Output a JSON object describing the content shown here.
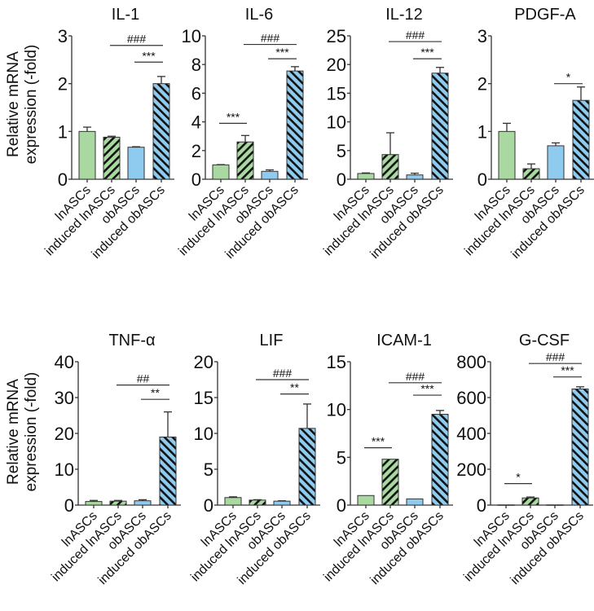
{
  "chart_data": {
    "type": "bar",
    "ylabel": [
      "Relative mRNA",
      "expression (-fold)"
    ],
    "categories": [
      "lnASCs",
      "induced lnASCs",
      "obASCs",
      "induced obASCs"
    ],
    "colors": {
      "lnASCs": "#a9d9a1",
      "obASCs": "#8ecbee",
      "hatch": "#111111"
    },
    "panels": [
      {
        "title": "IL-1",
        "ylim": [
          0,
          3
        ],
        "ticks": [
          "0",
          "1",
          "2",
          "3"
        ],
        "tick_values": [
          0,
          1,
          2,
          3
        ],
        "values": [
          1.0,
          0.88,
          0.67,
          2.0
        ],
        "errors": [
          0.09,
          0.02,
          0.01,
          0.15
        ],
        "annotations": [
          {
            "from": 1,
            "to": 3,
            "y": 2.8,
            "label": "###"
          },
          {
            "from": 2,
            "to": 3,
            "y": 2.45,
            "label": "***"
          }
        ]
      },
      {
        "title": "IL-6",
        "ylim": [
          0,
          10
        ],
        "ticks": [
          "0",
          "2",
          "4",
          "6",
          "8",
          "10"
        ],
        "tick_values": [
          0,
          2,
          4,
          6,
          8,
          10
        ],
        "values": [
          1.0,
          2.6,
          0.55,
          7.55
        ],
        "errors": [
          0.02,
          0.45,
          0.1,
          0.3
        ],
        "annotations": [
          {
            "from": 0,
            "to": 1,
            "y": 3.9,
            "label": "***"
          },
          {
            "from": 1,
            "to": 3,
            "y": 9.4,
            "label": "###"
          },
          {
            "from": 2,
            "to": 3,
            "y": 8.4,
            "label": "***"
          }
        ]
      },
      {
        "title": "IL-12",
        "ylim": [
          0,
          25
        ],
        "ticks": [
          "0",
          "5",
          "10",
          "15",
          "20",
          "25"
        ],
        "tick_values": [
          0,
          5,
          10,
          15,
          20,
          25
        ],
        "values": [
          1.0,
          4.3,
          0.75,
          18.5
        ],
        "errors": [
          0.1,
          3.8,
          0.3,
          1.0
        ],
        "annotations": [
          {
            "from": 1,
            "to": 3,
            "y": 24,
            "label": "###"
          },
          {
            "from": 2,
            "to": 3,
            "y": 21,
            "label": "***"
          }
        ]
      },
      {
        "title": "PDGF-A",
        "ylim": [
          0,
          3
        ],
        "ticks": [
          "0",
          "1",
          "2",
          "3"
        ],
        "tick_values": [
          0,
          1,
          2,
          3
        ],
        "values": [
          1.0,
          0.22,
          0.7,
          1.65
        ],
        "errors": [
          0.17,
          0.1,
          0.06,
          0.28
        ],
        "annotations": [
          {
            "from": 2,
            "to": 3,
            "y": 2.0,
            "label": "*"
          }
        ]
      },
      {
        "title": "TNF-α",
        "ylim": [
          0,
          40
        ],
        "ticks": [
          "0",
          "10",
          "20",
          "30",
          "40"
        ],
        "tick_values": [
          0,
          10,
          20,
          30,
          40
        ],
        "values": [
          1.0,
          1.1,
          1.2,
          19
        ],
        "errors": [
          0.3,
          0.2,
          0.3,
          7
        ],
        "annotations": [
          {
            "from": 1,
            "to": 3,
            "y": 33.5,
            "label": "##"
          },
          {
            "from": 2,
            "to": 3,
            "y": 29.5,
            "label": "**"
          }
        ]
      },
      {
        "title": "LIF",
        "ylim": [
          0,
          20
        ],
        "ticks": [
          "0",
          "5",
          "10",
          "15",
          "20"
        ],
        "tick_values": [
          0,
          5,
          10,
          15,
          20
        ],
        "values": [
          1.05,
          0.7,
          0.55,
          10.7
        ],
        "errors": [
          0.1,
          0.05,
          0.05,
          3.4
        ],
        "annotations": [
          {
            "from": 1,
            "to": 3,
            "y": 17.5,
            "label": "###"
          },
          {
            "from": 2,
            "to": 3,
            "y": 15.5,
            "label": "**"
          }
        ]
      },
      {
        "title": "ICAM-1",
        "ylim": [
          0,
          15
        ],
        "ticks": [
          "0",
          "5",
          "10",
          "15"
        ],
        "tick_values": [
          0,
          5,
          10,
          15
        ],
        "values": [
          1.0,
          4.8,
          0.65,
          9.5
        ],
        "errors": [
          0,
          0,
          0,
          0.4
        ],
        "annotations": [
          {
            "from": 0,
            "to": 1,
            "y": 6.0,
            "label": "***"
          },
          {
            "from": 1,
            "to": 3,
            "y": 12.8,
            "label": "###"
          },
          {
            "from": 2,
            "to": 3,
            "y": 11.5,
            "label": "***"
          }
        ]
      },
      {
        "title": "G-CSF",
        "ylim": [
          0,
          800
        ],
        "ticks": [
          "0",
          "200",
          "400",
          "600",
          "800"
        ],
        "tick_values": [
          0,
          200,
          400,
          600,
          800
        ],
        "values": [
          1,
          40,
          1,
          648
        ],
        "errors": [
          0,
          5,
          0,
          12
        ],
        "annotations": [
          {
            "from": 0,
            "to": 1,
            "y": 120,
            "label": "*"
          },
          {
            "from": 1,
            "to": 3,
            "y": 790,
            "label": "###"
          },
          {
            "from": 2,
            "to": 3,
            "y": 715,
            "label": "***"
          }
        ]
      }
    ]
  }
}
